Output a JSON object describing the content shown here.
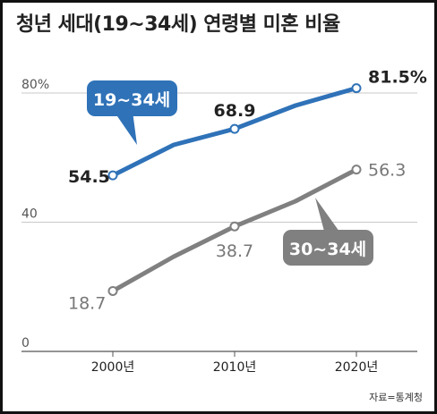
{
  "title": "청년 세대(19~34세) 연령별 미혼 비율",
  "source": "자료=통계청",
  "chart_data": {
    "type": "line",
    "x": [
      "2000년",
      "2010년",
      "2020년"
    ],
    "y_ticks": [
      "0",
      "40",
      "80%"
    ],
    "ylim": [
      0,
      80
    ],
    "grid": true,
    "series": [
      {
        "name": "19~34세",
        "color": "#2f72b8",
        "values": [
          54.5,
          68.9,
          81.5
        ],
        "labels": [
          "54.5",
          "68.9",
          "81.5%"
        ]
      },
      {
        "name": "30~34세",
        "color": "#808080",
        "values": [
          18.7,
          38.7,
          56.3
        ],
        "labels": [
          "18.7",
          "38.7",
          "56.3"
        ]
      }
    ]
  }
}
